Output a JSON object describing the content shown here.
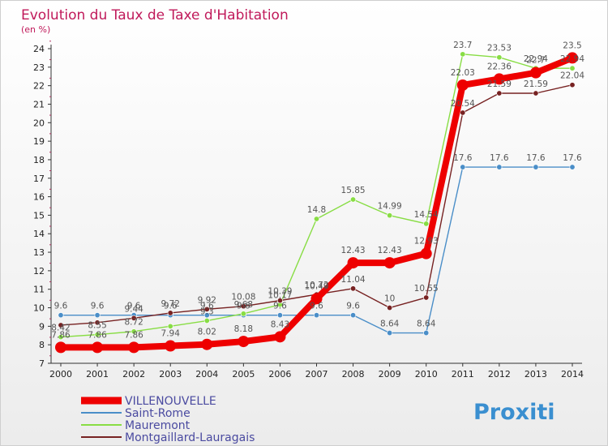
{
  "title": "Evolution du Taux de Taxe d'Habitation",
  "subtitle": "(en %)",
  "logo": "Proxiti",
  "chart_data": {
    "type": "line",
    "title": "Evolution du Taux de Taxe d'Habitation",
    "ylabel": "(en %)",
    "xlabel": "",
    "x": [
      2000,
      2001,
      2002,
      2003,
      2004,
      2005,
      2006,
      2007,
      2008,
      2009,
      2010,
      2011,
      2012,
      2013,
      2014
    ],
    "ylim": [
      7,
      24
    ],
    "yticks": [
      7,
      8,
      9,
      10,
      11,
      12,
      13,
      14,
      15,
      16,
      17,
      18,
      19,
      20,
      21,
      22,
      23,
      24
    ],
    "grid": false,
    "legend": "bottom-left",
    "series": [
      {
        "name": "VILLENOUVELLE",
        "color": "#ee0000",
        "values": [
          7.86,
          7.86,
          7.86,
          7.94,
          8.02,
          8.18,
          8.43,
          10.49,
          12.43,
          12.43,
          12.93,
          22.03,
          22.36,
          22.7,
          23.5
        ],
        "labels": [
          "7.86",
          "7.86",
          "7.86",
          "7.94",
          "8.02",
          "8.18",
          "8.43",
          "10.49",
          "12.43",
          "12.43",
          "12.93",
          "22.03",
          "22.36",
          "22.7",
          "23.5"
        ]
      },
      {
        "name": "Saint-Rome",
        "color": "#4a8ec8",
        "values": [
          9.6,
          9.6,
          9.6,
          9.6,
          9.6,
          9.6,
          9.6,
          9.6,
          9.6,
          8.64,
          8.64,
          17.6,
          17.6,
          17.6,
          17.6
        ],
        "labels": [
          "9.6",
          "9.6",
          "9.6",
          "9.6",
          "9.6",
          "9.6",
          "9.6",
          "9.6",
          "9.6",
          "8.64",
          "8.64",
          "17.6",
          "17.6",
          "17.6",
          "17.6"
        ]
      },
      {
        "name": "Mauremont",
        "color": "#88dd44",
        "values": [
          8.42,
          8.55,
          8.72,
          9.0,
          9.3,
          9.68,
          10.17,
          14.8,
          15.85,
          14.99,
          14.54,
          23.7,
          23.53,
          22.94,
          22.94
        ],
        "labels": [
          "8.42",
          "8.55",
          "8.72",
          "",
          "9.3",
          "9.68",
          "10.17",
          "14.8",
          "15.85",
          "14.99",
          "14.54",
          "23.7",
          "23.53",
          "22.94",
          "22.94"
        ]
      },
      {
        "name": "Montgaillard-Lauragais",
        "color": "#772222",
        "values": [
          9.06,
          9.2,
          9.44,
          9.72,
          9.92,
          10.08,
          10.39,
          10.72,
          11.04,
          10.0,
          10.55,
          20.54,
          21.59,
          21.59,
          22.04
        ],
        "labels": [
          "",
          "",
          "9.44",
          "9.72",
          "9.92",
          "10.08",
          "10.39",
          "10.72",
          "11.04",
          "10",
          "10.55",
          "20.54",
          "21.59",
          "21.59",
          "22.04"
        ]
      }
    ]
  }
}
